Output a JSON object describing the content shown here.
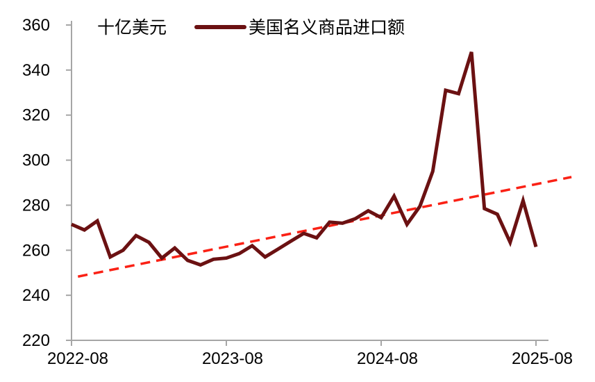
{
  "chart_data": {
    "type": "line",
    "unit_label": "十亿美元",
    "background": "#ffffff",
    "axis_color": "#a6a6a6",
    "text_color": "#000000",
    "grid": false,
    "legend": {
      "position": "top",
      "entries": [
        {
          "label": "美国名义商品进口额",
          "color": "#6b1112"
        }
      ]
    },
    "x": [
      "2022-08",
      "2022-09",
      "2022-10",
      "2022-11",
      "2022-12",
      "2023-01",
      "2023-02",
      "2023-03",
      "2023-04",
      "2023-05",
      "2023-06",
      "2023-07",
      "2023-08",
      "2023-09",
      "2023-10",
      "2023-11",
      "2023-12",
      "2024-01",
      "2024-02",
      "2024-03",
      "2024-04",
      "2024-05",
      "2024-06",
      "2024-07",
      "2024-08",
      "2024-09",
      "2024-10",
      "2024-11",
      "2024-12",
      "2025-01",
      "2025-02",
      "2025-03",
      "2025-04",
      "2025-05",
      "2025-06",
      "2025-07",
      "2025-08"
    ],
    "series": [
      {
        "name": "美国名义商品进口额",
        "color": "#6b1112",
        "values": [
          271.5,
          269,
          273,
          257,
          260,
          266.5,
          263.5,
          256.5,
          261,
          255.5,
          253.5,
          256,
          256.5,
          258.5,
          262,
          257,
          260.5,
          264,
          267.5,
          265.5,
          272.5,
          272,
          274,
          277.5,
          274.5,
          284,
          271.5,
          279.5,
          295,
          331,
          329.5,
          348,
          278.5,
          276,
          263.5,
          282,
          261.5
        ]
      }
    ],
    "trend_line": {
      "style": "dashed",
      "color": "#fa2115",
      "start": {
        "x_index": 0.5,
        "value": 248.3
      },
      "end": {
        "x_index": 38.75,
        "value": 292.5
      }
    },
    "y_axis": {
      "min": 220,
      "max": 360,
      "tick_step": 20,
      "tick_labels": [
        "220",
        "240",
        "260",
        "280",
        "300",
        "320",
        "340",
        "360"
      ]
    },
    "x_axis": {
      "tick_indices": [
        0,
        12,
        24,
        36
      ],
      "tick_labels": [
        "2022-08",
        "2023-08",
        "2024-08",
        "2025-08"
      ]
    }
  }
}
